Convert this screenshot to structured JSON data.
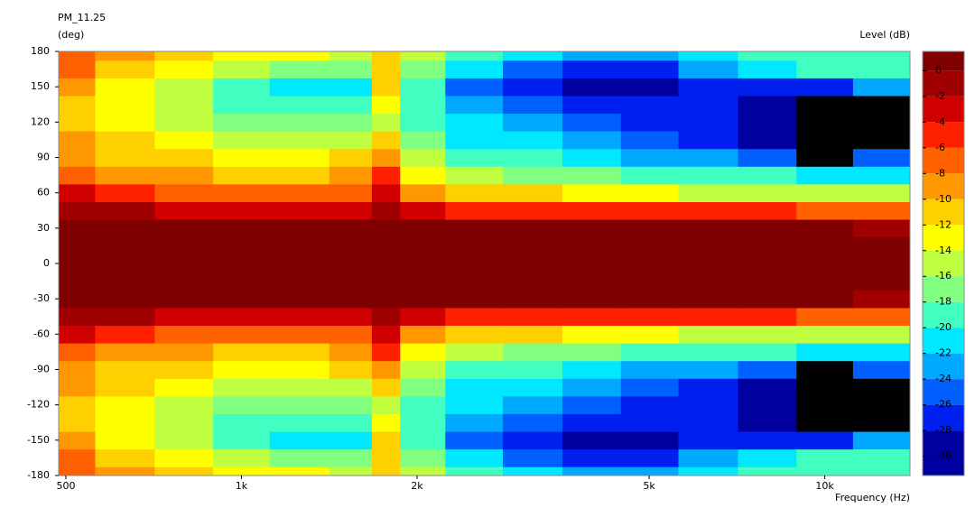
{
  "chart_data": {
    "type": "contour",
    "title": "PM_11.25",
    "y_label": "(deg)",
    "x_label": "Frequency (Hz)",
    "colorbar_label": "Level (dB)",
    "x": [
      500,
      630,
      800,
      1000,
      1250,
      1600,
      1750,
      2000,
      2500,
      3150,
      4000,
      5000,
      6300,
      8000,
      10000,
      12500
    ],
    "y": [
      -180,
      -165,
      -150,
      -135,
      -120,
      -105,
      -90,
      -75,
      -60,
      -45,
      -30,
      -15,
      0,
      15,
      30,
      45,
      60,
      75,
      90,
      105,
      120,
      135,
      150,
      165,
      180
    ],
    "z": [
      [
        -7,
        -10,
        -12,
        -13,
        -14,
        -15,
        -11,
        -15,
        -19,
        -22,
        -24,
        -23,
        -22,
        -20,
        -20,
        -19
      ],
      [
        -8,
        -11,
        -13,
        -15,
        -17,
        -18,
        -12,
        -17,
        -22,
        -25,
        -27,
        -27,
        -24,
        -22,
        -20,
        -20
      ],
      [
        -10,
        -13,
        -16,
        -20,
        -22,
        -22,
        -12,
        -20,
        -25,
        -28,
        -30,
        -29,
        -27,
        -28,
        -27,
        -24
      ],
      [
        -11,
        -13,
        -16,
        -19,
        -20,
        -20,
        -13,
        -20,
        -24,
        -26,
        -27,
        -28,
        -28,
        -29,
        -32,
        -32
      ],
      [
        -11,
        -13,
        -15,
        -17,
        -17,
        -18,
        -15,
        -19,
        -22,
        -24,
        -26,
        -27,
        -28,
        -30,
        -32,
        -32
      ],
      [
        -10,
        -12,
        -14,
        -15,
        -15,
        -15,
        -11,
        -18,
        -21,
        -22,
        -24,
        -26,
        -27,
        -29,
        -32,
        -32
      ],
      [
        -9,
        -11,
        -12,
        -13,
        -13,
        -12,
        -9,
        -16,
        -19,
        -20,
        -22,
        -23,
        -24,
        -25,
        -31,
        -26
      ],
      [
        -7,
        -9,
        -10,
        -11,
        -11,
        -10,
        -6,
        -13,
        -16,
        -17,
        -18,
        -19,
        -20,
        -20,
        -21,
        -22
      ],
      [
        -4,
        -6,
        -7,
        -8,
        -8,
        -7,
        -3,
        -9,
        -11,
        -12,
        -13,
        -14,
        -15,
        -15,
        -16,
        -16
      ],
      [
        -1,
        -2,
        -3,
        -4,
        -4,
        -3,
        -1,
        -4,
        -5,
        -5,
        -5,
        -6,
        -6,
        -6,
        -7,
        -7
      ],
      [
        0,
        0,
        0,
        0,
        0,
        0,
        0,
        0,
        0,
        0,
        0,
        0,
        0,
        0,
        0,
        -1
      ],
      [
        0,
        0,
        0,
        0,
        0,
        0,
        0,
        0,
        0,
        0,
        0,
        0,
        0,
        0,
        0,
        0
      ],
      [
        0,
        0,
        0,
        0,
        0,
        0,
        0,
        0,
        0,
        0,
        0,
        0,
        0,
        0,
        0,
        0
      ],
      [
        0,
        0,
        0,
        0,
        0,
        0,
        0,
        0,
        0,
        0,
        0,
        0,
        0,
        0,
        0,
        0
      ],
      [
        0,
        0,
        0,
        0,
        0,
        0,
        0,
        0,
        0,
        0,
        0,
        0,
        0,
        0,
        0,
        -1
      ],
      [
        -1,
        -2,
        -3,
        -4,
        -4,
        -3,
        -1,
        -4,
        -5,
        -5,
        -5,
        -6,
        -6,
        -6,
        -7,
        -7
      ],
      [
        -4,
        -6,
        -7,
        -8,
        -8,
        -7,
        -3,
        -9,
        -11,
        -12,
        -13,
        -14,
        -15,
        -15,
        -16,
        -16
      ],
      [
        -7,
        -9,
        -10,
        -11,
        -11,
        -10,
        -6,
        -13,
        -16,
        -17,
        -18,
        -19,
        -20,
        -20,
        -21,
        -22
      ],
      [
        -9,
        -11,
        -12,
        -13,
        -13,
        -12,
        -9,
        -16,
        -19,
        -20,
        -22,
        -23,
        -24,
        -25,
        -31,
        -26
      ],
      [
        -10,
        -12,
        -14,
        -15,
        -15,
        -15,
        -11,
        -18,
        -21,
        -22,
        -24,
        -26,
        -27,
        -29,
        -32,
        -32
      ],
      [
        -11,
        -13,
        -15,
        -17,
        -17,
        -18,
        -15,
        -19,
        -22,
        -24,
        -26,
        -27,
        -28,
        -30,
        -32,
        -32
      ],
      [
        -11,
        -13,
        -16,
        -19,
        -20,
        -20,
        -13,
        -20,
        -24,
        -26,
        -27,
        -28,
        -28,
        -29,
        -32,
        -32
      ],
      [
        -10,
        -13,
        -16,
        -20,
        -22,
        -22,
        -12,
        -20,
        -25,
        -28,
        -30,
        -29,
        -27,
        -28,
        -27,
        -24
      ],
      [
        -8,
        -11,
        -13,
        -15,
        -17,
        -18,
        -12,
        -17,
        -22,
        -25,
        -27,
        -27,
        -24,
        -22,
        -20,
        -20
      ],
      [
        -7,
        -10,
        -12,
        -13,
        -14,
        -15,
        -11,
        -15,
        -19,
        -22,
        -24,
        -23,
        -22,
        -20,
        -20,
        -19
      ]
    ],
    "xlim": [
      486,
      14000
    ],
    "x_log": true,
    "xticks": [
      500,
      {
        "value": 1000,
        "label": "1k"
      },
      {
        "value": 2000,
        "label": "2k"
      },
      {
        "value": 5000,
        "label": "5k"
      },
      {
        "value": 10000,
        "label": "10k"
      }
    ],
    "ylim": [
      -180,
      180
    ],
    "yticks": [
      -180,
      -150,
      -120,
      -90,
      -60,
      -30,
      0,
      30,
      60,
      90,
      120,
      150,
      180
    ],
    "zlim": [
      1.5,
      -31.5
    ],
    "zticks": [
      0,
      -2,
      -4,
      -6,
      -8,
      -10,
      -12,
      -14,
      -16,
      -18,
      -20,
      -22,
      -24,
      -26,
      -28,
      -30
    ],
    "colors": [
      "#800000",
      "#a00000",
      "#d00000",
      "#ff2000",
      "#ff6000",
      "#ff9800",
      "#ffd000",
      "#ffff00",
      "#c0ff40",
      "#80ff80",
      "#40ffc0",
      "#00e8ff",
      "#00a8ff",
      "#0060ff",
      "#0020f0",
      "#0000a0",
      "#000000"
    ]
  }
}
